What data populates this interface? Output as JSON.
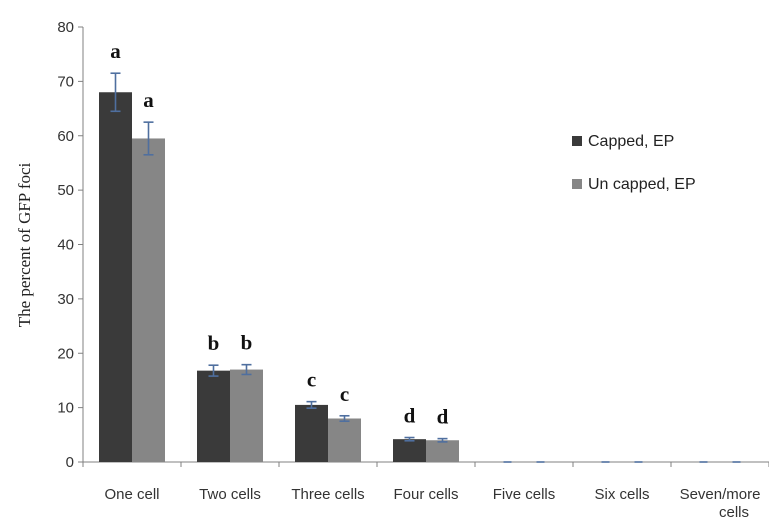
{
  "chart_data": {
    "type": "bar",
    "title": "",
    "xlabel": "",
    "ylabel": "The percent of GFP foci",
    "ylim": [
      0,
      80
    ],
    "yticks": [
      0,
      10,
      20,
      30,
      40,
      50,
      60,
      70,
      80
    ],
    "grid": false,
    "legend_position": "right",
    "categories": [
      "One cell",
      "Two cells",
      "Three cells",
      "Four cells",
      "Five cells",
      "Six cells",
      "Seven/more cells"
    ],
    "series": [
      {
        "name": "Capped, EP",
        "color": "#3a3a3a",
        "values": [
          68,
          16.8,
          10.5,
          4.2,
          0,
          0,
          0
        ],
        "errors": [
          3.5,
          1.0,
          0.6,
          0.3,
          0,
          0,
          0
        ],
        "significance": [
          "a",
          "b",
          "c",
          "d",
          "",
          "",
          ""
        ]
      },
      {
        "name": "Un capped, EP",
        "color": "#868686",
        "values": [
          59.5,
          17.0,
          8.0,
          4.0,
          0,
          0,
          0
        ],
        "errors": [
          3.0,
          0.9,
          0.5,
          0.3,
          0,
          0,
          0
        ],
        "significance": [
          "a",
          "b",
          "c",
          "d",
          "",
          "",
          ""
        ]
      }
    ],
    "error_bar_color": "#4f6f9f"
  }
}
